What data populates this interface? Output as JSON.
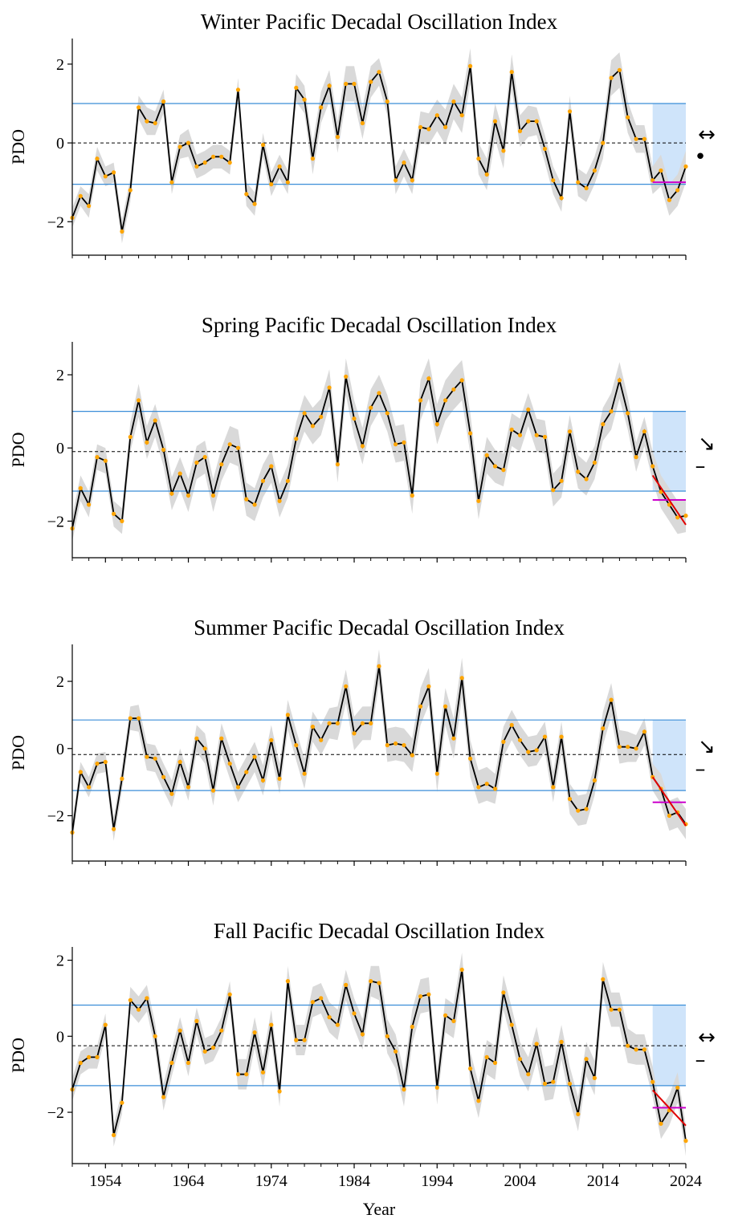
{
  "x_axis_label": "Year",
  "y_axis_label": "PDO",
  "x_tick_labels": [
    "1954",
    "1964",
    "1974",
    "1984",
    "1994",
    "2004",
    "2014",
    "2024"
  ],
  "colors": {
    "line": "#000000",
    "points": "#FFA500",
    "band": "#d9d9d9",
    "threshold": "#3b8ed8",
    "recent_shade": "#cfe4fa",
    "mean_line": "#000000",
    "recent_mean": "#cc00cc",
    "trend": "#e00000"
  },
  "chart_data": [
    {
      "type": "line",
      "title": "Winter Pacific Decadal Oscillation Index",
      "xlabel": "Year",
      "ylabel": "PDO",
      "ylim": [
        -2.85,
        2.65
      ],
      "yticks": [
        -2,
        0,
        2
      ],
      "mean": 0.0,
      "upper": 1.0,
      "lower": -1.05,
      "recent_window": [
        2020,
        2024
      ],
      "recent_mean": -1.0,
      "trend_line": null,
      "trend_indicator": "↔",
      "mean_indicator": "•",
      "x": [
        1950,
        1951,
        1952,
        1953,
        1954,
        1955,
        1956,
        1957,
        1958,
        1959,
        1960,
        1961,
        1962,
        1963,
        1964,
        1965,
        1966,
        1967,
        1968,
        1969,
        1970,
        1971,
        1972,
        1973,
        1974,
        1975,
        1976,
        1977,
        1978,
        1979,
        1980,
        1981,
        1982,
        1983,
        1984,
        1985,
        1986,
        1987,
        1988,
        1989,
        1990,
        1991,
        1992,
        1993,
        1994,
        1995,
        1996,
        1997,
        1998,
        1999,
        2000,
        2001,
        2002,
        2003,
        2004,
        2005,
        2006,
        2007,
        2008,
        2009,
        2010,
        2011,
        2012,
        2013,
        2014,
        2015,
        2016,
        2017,
        2018,
        2019,
        2020,
        2021,
        2022,
        2023,
        2024
      ],
      "values": [
        -1.9,
        -1.35,
        -1.6,
        -0.4,
        -0.85,
        -0.75,
        -2.25,
        -1.2,
        0.9,
        0.55,
        0.5,
        1.05,
        -1.0,
        -0.1,
        0.0,
        -0.6,
        -0.5,
        -0.35,
        -0.35,
        -0.5,
        1.35,
        -1.3,
        -1.55,
        -0.05,
        -1.05,
        -0.6,
        -1.0,
        1.4,
        1.1,
        -0.4,
        0.9,
        1.45,
        0.15,
        1.5,
        1.5,
        0.5,
        1.55,
        1.8,
        1.05,
        -0.95,
        -0.5,
        -0.95,
        0.4,
        0.35,
        0.7,
        0.4,
        1.05,
        0.7,
        1.95,
        -0.4,
        -0.8,
        0.55,
        -0.2,
        1.8,
        0.3,
        0.55,
        0.55,
        -0.15,
        -0.95,
        -1.4,
        0.8,
        -1.0,
        -1.15,
        -0.7,
        0.0,
        1.65,
        1.85,
        0.65,
        0.1,
        0.1,
        -0.95,
        -0.7,
        -1.45,
        -1.2,
        -0.6
      ],
      "band_half_width": [
        0.25,
        0.25,
        0.3,
        0.3,
        0.25,
        0.25,
        0.3,
        0.3,
        0.3,
        0.35,
        0.3,
        0.3,
        0.3,
        0.3,
        0.35,
        0.3,
        0.3,
        0.3,
        0.3,
        0.3,
        0.3,
        0.3,
        0.3,
        0.3,
        0.3,
        0.3,
        0.3,
        0.35,
        0.35,
        0.4,
        0.4,
        0.4,
        0.4,
        0.45,
        0.45,
        0.4,
        0.4,
        0.35,
        0.35,
        0.35,
        0.35,
        0.35,
        0.4,
        0.4,
        0.4,
        0.45,
        0.45,
        0.45,
        0.45,
        0.4,
        0.4,
        0.45,
        0.45,
        0.45,
        0.4,
        0.4,
        0.35,
        0.35,
        0.35,
        0.35,
        0.4,
        0.35,
        0.35,
        0.35,
        0.4,
        0.45,
        0.45,
        0.4,
        0.35,
        0.35,
        0.35,
        0.4,
        0.4,
        0.4,
        0.4
      ]
    },
    {
      "type": "line",
      "title": "Spring Pacific Decadal Oscillation Index",
      "xlabel": "Year",
      "ylabel": "PDO",
      "ylim": [
        -3.0,
        2.9
      ],
      "yticks": [
        -2,
        0,
        2
      ],
      "mean": -0.1,
      "upper": 1.0,
      "lower": -1.18,
      "recent_window": [
        2020,
        2024
      ],
      "recent_mean": -1.42,
      "trend_line": [
        [
          2020,
          -0.75
        ],
        [
          2024,
          -2.1
        ]
      ],
      "trend_indicator": "↘",
      "mean_indicator": "–",
      "x": [
        1950,
        1951,
        1952,
        1953,
        1954,
        1955,
        1956,
        1957,
        1958,
        1959,
        1960,
        1961,
        1962,
        1963,
        1964,
        1965,
        1966,
        1967,
        1968,
        1969,
        1970,
        1971,
        1972,
        1973,
        1974,
        1975,
        1976,
        1977,
        1978,
        1979,
        1980,
        1981,
        1982,
        1983,
        1984,
        1985,
        1986,
        1987,
        1988,
        1989,
        1990,
        1991,
        1992,
        1993,
        1994,
        1995,
        1996,
        1997,
        1998,
        1999,
        2000,
        2001,
        2002,
        2003,
        2004,
        2005,
        2006,
        2007,
        2008,
        2009,
        2010,
        2011,
        2012,
        2013,
        2014,
        2015,
        2016,
        2017,
        2018,
        2019,
        2020,
        2021,
        2022,
        2023,
        2024
      ],
      "values": [
        -2.2,
        -1.1,
        -1.55,
        -0.25,
        -0.35,
        -1.8,
        -2.0,
        0.3,
        1.3,
        0.15,
        0.75,
        -0.05,
        -1.25,
        -0.7,
        -1.3,
        -0.4,
        -0.25,
        -1.3,
        -0.45,
        0.1,
        0.0,
        -1.4,
        -1.55,
        -0.9,
        -0.5,
        -1.45,
        -0.9,
        0.25,
        0.95,
        0.6,
        0.85,
        1.65,
        -0.45,
        1.95,
        0.8,
        0.05,
        1.1,
        1.5,
        0.95,
        0.1,
        0.15,
        -1.3,
        1.3,
        1.9,
        0.65,
        1.3,
        1.6,
        1.85,
        0.4,
        -1.45,
        -0.2,
        -0.5,
        -0.6,
        0.5,
        0.35,
        1.05,
        0.35,
        0.3,
        -1.15,
        -0.9,
        0.45,
        -0.65,
        -0.85,
        -0.4,
        0.65,
        1.0,
        1.85,
        0.95,
        -0.25,
        0.45,
        -0.5,
        -1.2,
        -1.55,
        -1.9,
        -1.85
      ],
      "band_half_width": [
        0.35,
        0.35,
        0.35,
        0.35,
        0.35,
        0.35,
        0.35,
        0.4,
        0.45,
        0.45,
        0.45,
        0.45,
        0.45,
        0.45,
        0.45,
        0.45,
        0.45,
        0.45,
        0.45,
        0.5,
        0.5,
        0.45,
        0.45,
        0.45,
        0.45,
        0.45,
        0.45,
        0.45,
        0.5,
        0.5,
        0.5,
        0.5,
        0.5,
        0.5,
        0.5,
        0.5,
        0.5,
        0.5,
        0.5,
        0.5,
        0.5,
        0.5,
        0.55,
        0.55,
        0.55,
        0.55,
        0.55,
        0.55,
        0.55,
        0.5,
        0.5,
        0.45,
        0.45,
        0.45,
        0.45,
        0.45,
        0.45,
        0.45,
        0.45,
        0.45,
        0.45,
        0.45,
        0.45,
        0.45,
        0.45,
        0.5,
        0.5,
        0.45,
        0.4,
        0.4,
        0.4,
        0.45,
        0.45,
        0.45,
        0.45
      ]
    },
    {
      "type": "line",
      "title": "Summer Pacific Decadal Oscillation Index",
      "xlabel": "Year",
      "ylabel": "PDO",
      "ylim": [
        -3.35,
        3.1
      ],
      "yticks": [
        -2,
        0,
        2
      ],
      "mean": -0.18,
      "upper": 0.85,
      "lower": -1.25,
      "recent_window": [
        2020,
        2024
      ],
      "recent_mean": -1.6,
      "trend_line": [
        [
          2020,
          -0.85
        ],
        [
          2024,
          -2.3
        ]
      ],
      "trend_indicator": "↘",
      "mean_indicator": "–",
      "x": [
        1950,
        1951,
        1952,
        1953,
        1954,
        1955,
        1956,
        1957,
        1958,
        1959,
        1960,
        1961,
        1962,
        1963,
        1964,
        1965,
        1966,
        1967,
        1968,
        1969,
        1970,
        1971,
        1972,
        1973,
        1974,
        1975,
        1976,
        1977,
        1978,
        1979,
        1980,
        1981,
        1982,
        1983,
        1984,
        1985,
        1986,
        1987,
        1988,
        1989,
        1990,
        1991,
        1992,
        1993,
        1994,
        1995,
        1996,
        1997,
        1998,
        1999,
        2000,
        2001,
        2002,
        2003,
        2004,
        2005,
        2006,
        2007,
        2008,
        2009,
        2010,
        2011,
        2012,
        2013,
        2014,
        2015,
        2016,
        2017,
        2018,
        2019,
        2020,
        2021,
        2022,
        2023,
        2024
      ],
      "values": [
        -2.5,
        -0.7,
        -1.15,
        -0.45,
        -0.4,
        -2.4,
        -0.9,
        0.9,
        0.9,
        -0.25,
        -0.3,
        -0.85,
        -1.35,
        -0.4,
        -1.15,
        0.3,
        0.0,
        -1.25,
        0.3,
        -0.45,
        -1.15,
        -0.7,
        -0.25,
        -0.95,
        0.25,
        -0.9,
        1.0,
        0.1,
        -0.75,
        0.65,
        0.25,
        0.75,
        0.75,
        1.85,
        0.45,
        0.75,
        0.75,
        2.45,
        0.1,
        0.15,
        0.1,
        -0.2,
        1.25,
        1.85,
        -0.75,
        1.25,
        0.3,
        2.1,
        -0.3,
        -1.15,
        -1.05,
        -1.2,
        0.2,
        0.7,
        0.25,
        -0.1,
        -0.05,
        0.35,
        -1.15,
        0.35,
        -1.5,
        -1.85,
        -1.8,
        -0.95,
        0.6,
        1.45,
        0.05,
        0.05,
        0.0,
        0.5,
        -0.85,
        -1.2,
        -2.0,
        -1.9,
        -2.25
      ],
      "band_half_width": [
        0.3,
        0.3,
        0.3,
        0.3,
        0.3,
        0.35,
        0.35,
        0.35,
        0.4,
        0.4,
        0.4,
        0.4,
        0.4,
        0.4,
        0.4,
        0.4,
        0.45,
        0.45,
        0.45,
        0.45,
        0.45,
        0.45,
        0.45,
        0.45,
        0.45,
        0.45,
        0.45,
        0.45,
        0.45,
        0.45,
        0.45,
        0.45,
        0.5,
        0.5,
        0.5,
        0.5,
        0.5,
        0.5,
        0.5,
        0.5,
        0.5,
        0.5,
        0.55,
        0.55,
        0.55,
        0.55,
        0.6,
        0.6,
        0.55,
        0.5,
        0.5,
        0.45,
        0.45,
        0.45,
        0.45,
        0.45,
        0.45,
        0.45,
        0.45,
        0.45,
        0.45,
        0.45,
        0.45,
        0.45,
        0.5,
        0.5,
        0.5,
        0.45,
        0.4,
        0.4,
        0.4,
        0.45,
        0.45,
        0.45,
        0.45
      ]
    },
    {
      "type": "line",
      "title": "Fall Pacific Decadal Oscillation Index",
      "xlabel": "Year",
      "ylabel": "PDO",
      "ylim": [
        -3.35,
        2.35
      ],
      "yticks": [
        -2,
        0,
        2
      ],
      "mean": -0.25,
      "upper": 0.82,
      "lower": -1.3,
      "recent_window": [
        2020,
        2024
      ],
      "recent_mean": -1.88,
      "trend_line": [
        [
          2020,
          -1.42
        ],
        [
          2024,
          -2.35
        ]
      ],
      "trend_indicator": "↔",
      "mean_indicator": "–",
      "x": [
        1950,
        1951,
        1952,
        1953,
        1954,
        1955,
        1956,
        1957,
        1958,
        1959,
        1960,
        1961,
        1962,
        1963,
        1964,
        1965,
        1966,
        1967,
        1968,
        1969,
        1970,
        1971,
        1972,
        1973,
        1974,
        1975,
        1976,
        1977,
        1978,
        1979,
        1980,
        1981,
        1982,
        1983,
        1984,
        1985,
        1986,
        1987,
        1988,
        1989,
        1990,
        1991,
        1992,
        1993,
        1994,
        1995,
        1996,
        1997,
        1998,
        1999,
        2000,
        2001,
        2002,
        2003,
        2004,
        2005,
        2006,
        2007,
        2008,
        2009,
        2010,
        2011,
        2012,
        2013,
        2014,
        2015,
        2016,
        2017,
        2018,
        2019,
        2020,
        2021,
        2022,
        2023,
        2024
      ],
      "values": [
        -1.4,
        -0.7,
        -0.55,
        -0.55,
        0.3,
        -2.6,
        -1.75,
        0.95,
        0.7,
        1.0,
        0.0,
        -1.6,
        -0.7,
        0.15,
        -0.7,
        0.4,
        -0.4,
        -0.3,
        0.15,
        1.1,
        -1.0,
        -1.0,
        0.1,
        -0.95,
        0.3,
        -1.45,
        1.45,
        -0.1,
        -0.1,
        0.9,
        1.0,
        0.5,
        0.3,
        1.35,
        0.6,
        0.05,
        1.45,
        1.4,
        0.0,
        -0.4,
        -1.4,
        0.25,
        1.05,
        1.1,
        -1.35,
        0.55,
        0.4,
        1.75,
        -0.85,
        -1.7,
        -0.55,
        -0.7,
        1.15,
        0.3,
        -0.6,
        -1.0,
        -0.2,
        -1.25,
        -1.2,
        -0.15,
        -1.25,
        -2.05,
        -0.6,
        -1.1,
        1.5,
        0.7,
        0.7,
        -0.25,
        -0.35,
        -0.35,
        -1.2,
        -2.3,
        -1.95,
        -1.35,
        -2.75
      ],
      "band_half_width": [
        0.3,
        0.3,
        0.3,
        0.3,
        0.3,
        0.3,
        0.3,
        0.35,
        0.35,
        0.35,
        0.35,
        0.35,
        0.35,
        0.35,
        0.35,
        0.35,
        0.35,
        0.35,
        0.35,
        0.35,
        0.4,
        0.4,
        0.4,
        0.4,
        0.4,
        0.4,
        0.4,
        0.4,
        0.4,
        0.4,
        0.4,
        0.4,
        0.4,
        0.4,
        0.4,
        0.4,
        0.4,
        0.45,
        0.45,
        0.45,
        0.45,
        0.45,
        0.45,
        0.45,
        0.45,
        0.45,
        0.45,
        0.45,
        0.45,
        0.45,
        0.45,
        0.45,
        0.45,
        0.45,
        0.45,
        0.45,
        0.45,
        0.45,
        0.45,
        0.45,
        0.45,
        0.45,
        0.45,
        0.45,
        0.45,
        0.45,
        0.45,
        0.45,
        0.4,
        0.4,
        0.4,
        0.4,
        0.4,
        0.4,
        0.4
      ]
    }
  ]
}
